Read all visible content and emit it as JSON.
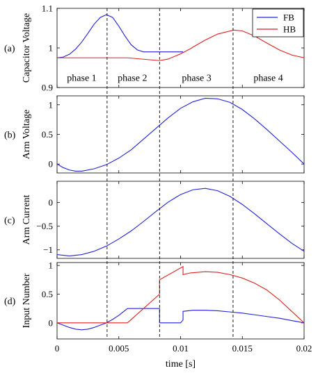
{
  "chart_data": {
    "type": "line",
    "xlabel": "time [s]",
    "xlim": [
      0,
      0.02
    ],
    "xticks": [
      0,
      0.005,
      0.01,
      0.015,
      0.02
    ],
    "xtick_labels": [
      "0",
      "0.005",
      "0.01",
      "0.015",
      "0.02"
    ],
    "phase_boundaries": [
      0.00405,
      0.0083,
      0.01425
    ],
    "legend": {
      "entries": [
        "FB",
        "HB"
      ],
      "colors": [
        "#1f1fe0",
        "#e01f1f"
      ],
      "placement": "top-right"
    },
    "panels": [
      {
        "tag": "(a)",
        "ylabel": "Capacitor Voltage",
        "ylim": [
          0.9,
          1.1
        ],
        "yticks": [
          0.9,
          1,
          1.1
        ],
        "ytick_labels": [
          "0.9",
          "1",
          "1.1"
        ],
        "phase_labels": [
          {
            "text": "phase 1",
            "x": 0.002
          },
          {
            "text": "phase 2",
            "x": 0.0061
          },
          {
            "text": "phase 3",
            "x": 0.0113
          },
          {
            "text": "phase 4",
            "x": 0.0171
          }
        ],
        "series": [
          {
            "name": "FB",
            "color": "#1f1fe0",
            "x": [
              0,
              0.0005,
              0.001,
              0.0015,
              0.002,
              0.0025,
              0.003,
              0.0035,
              0.004,
              0.0045,
              0.005,
              0.0055,
              0.006,
              0.0065,
              0.007,
              0.0083,
              0.0083,
              0.0102,
              0.0102
            ],
            "y": [
              0.975,
              0.977,
              0.984,
              0.997,
              1.015,
              1.037,
              1.06,
              1.077,
              1.084,
              1.077,
              1.055,
              1.03,
              1.008,
              0.995,
              0.99,
              0.99,
              0.99,
              0.99,
              0.99
            ]
          },
          {
            "name": "HB",
            "color": "#e01f1f",
            "x": [
              0,
              0.0057,
              0.0083,
              0.009,
              0.01,
              0.0108,
              0.011,
              0.012,
              0.013,
              0.0143,
              0.015,
              0.016,
              0.017,
              0.018,
              0.019,
              0.02
            ],
            "y": [
              0.975,
              0.975,
              0.968,
              0.972,
              0.985,
              0.998,
              1.002,
              1.02,
              1.035,
              1.045,
              1.043,
              1.03,
              1.012,
              0.995,
              0.982,
              0.975
            ]
          }
        ]
      },
      {
        "tag": "(b)",
        "ylabel": "Arm Voltage",
        "ylim": [
          -0.15,
          1.15
        ],
        "yticks": [
          0,
          0.5,
          1
        ],
        "ytick_labels": [
          "0",
          "0.5",
          "1"
        ],
        "series": [
          {
            "name": "FB",
            "color": "#1f1fe0",
            "x": [
              0,
              0.0005,
              0.001,
              0.0015,
              0.002,
              0.003,
              0.004,
              0.005,
              0.006,
              0.007,
              0.008,
              0.009,
              0.01,
              0.011,
              0.012,
              0.013,
              0.014,
              0.015,
              0.016,
              0.017,
              0.018,
              0.019,
              0.02
            ],
            "y": [
              0,
              -0.06,
              -0.1,
              -0.12,
              -0.12,
              -0.08,
              -0.01,
              0.1,
              0.24,
              0.42,
              0.6,
              0.78,
              0.94,
              1.05,
              1.11,
              1.1,
              1.04,
              0.92,
              0.76,
              0.58,
              0.39,
              0.2,
              0.0
            ]
          }
        ]
      },
      {
        "tag": "(c)",
        "ylabel": "Arm Current",
        "ylim": [
          -1.18,
          0.45
        ],
        "yticks": [
          -1,
          -0.5,
          0
        ],
        "ytick_labels": [
          "−1",
          "−0.5",
          "0"
        ],
        "series": [
          {
            "name": "FB",
            "color": "#1f1fe0",
            "x": [
              0,
              0.001,
              0.002,
              0.003,
              0.004,
              0.005,
              0.006,
              0.007,
              0.008,
              0.009,
              0.01,
              0.011,
              0.012,
              0.013,
              0.014,
              0.015,
              0.016,
              0.017,
              0.018,
              0.019,
              0.02
            ],
            "y": [
              -1.1,
              -1.13,
              -1.1,
              -1.03,
              -0.92,
              -0.77,
              -0.6,
              -0.4,
              -0.19,
              0.01,
              0.17,
              0.27,
              0.3,
              0.25,
              0.13,
              -0.04,
              -0.24,
              -0.45,
              -0.66,
              -0.86,
              -1.03
            ]
          }
        ]
      },
      {
        "tag": "(d)",
        "ylabel": "Input Number",
        "ylim": [
          -0.28,
          1.05
        ],
        "yticks": [
          0,
          0.5,
          1
        ],
        "ytick_labels": [
          "0",
          "0.5",
          "1"
        ],
        "series": [
          {
            "name": "FB",
            "color": "#1f1fe0",
            "x": [
              0,
              0.0005,
              0.001,
              0.0015,
              0.002,
              0.0025,
              0.003,
              0.0035,
              0.004,
              0.0045,
              0.005,
              0.0057,
              0.0083,
              0.0083,
              0.01,
              0.0102,
              0.0102,
              0.011,
              0.012,
              0.013,
              0.014,
              0.015,
              0.016,
              0.017,
              0.018,
              0.019,
              0.02
            ],
            "y": [
              0,
              -0.04,
              -0.08,
              -0.11,
              -0.12,
              -0.11,
              -0.08,
              -0.04,
              0.0,
              0.06,
              0.13,
              0.25,
              0.25,
              0.0,
              0.0,
              0.05,
              0.2,
              0.22,
              0.22,
              0.21,
              0.19,
              0.17,
              0.14,
              0.11,
              0.08,
              0.04,
              0.0
            ]
          },
          {
            "name": "HB",
            "color": "#e01f1f",
            "x": [
              0,
              0.004,
              0.0057,
              0.0083,
              0.0083,
              0.0102,
              0.0102,
              0.0108,
              0.012,
              0.013,
              0.014,
              0.015,
              0.016,
              0.017,
              0.018,
              0.019,
              0.02
            ],
            "y": [
              0,
              0,
              0,
              0.5,
              0.75,
              0.98,
              0.84,
              0.87,
              0.89,
              0.88,
              0.84,
              0.78,
              0.69,
              0.57,
              0.4,
              0.2,
              0.0
            ]
          }
        ]
      }
    ]
  }
}
